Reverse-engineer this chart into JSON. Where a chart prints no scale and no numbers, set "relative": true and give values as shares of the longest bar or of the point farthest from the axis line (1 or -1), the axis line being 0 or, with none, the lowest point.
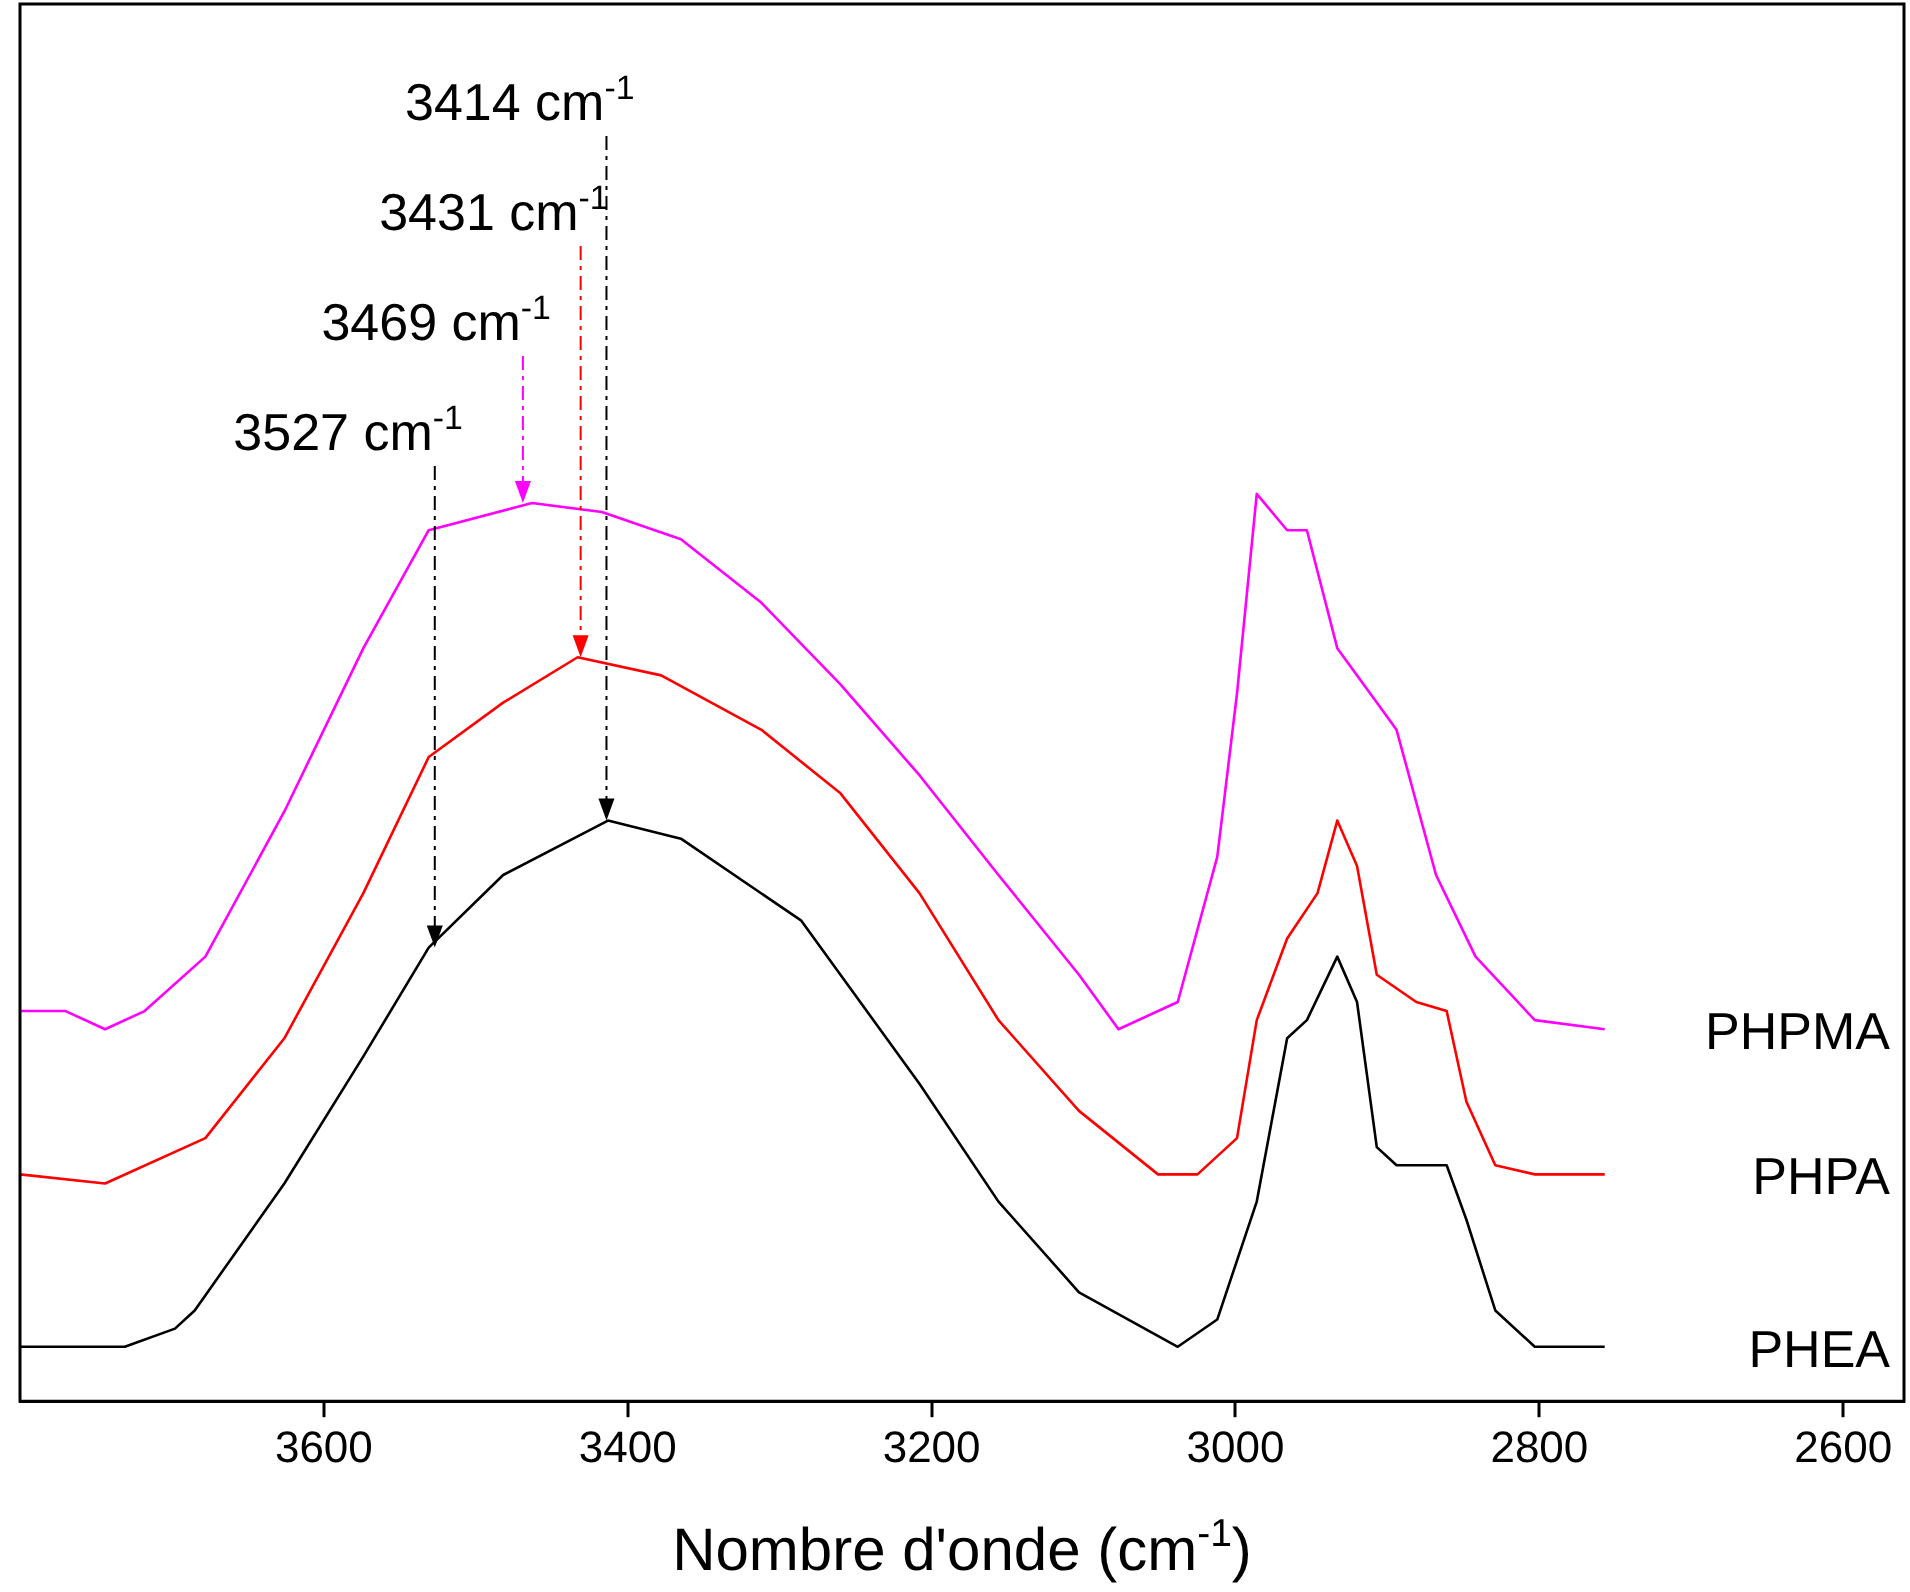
{
  "chart_data": {
    "type": "line",
    "relative": true,
    "xlabel": "Nombre d'onde (cm$^{-1}$)",
    "xlim": [
      3800,
      2560
    ],
    "xticks": [
      3600,
      3400,
      3200,
      3000,
      2800,
      2600
    ],
    "tick_labels": "x",
    "grid": false,
    "legend": false,
    "marker": "none",
    "line_style": "solid",
    "annotations": [
      {
        "text": "3414 cm$^{-1}$",
        "x": 3414,
        "y": 0.64
      },
      {
        "text": "3431 cm$^{-1}$",
        "x": 3431,
        "y": 0.82
      },
      {
        "text": "3469 cm$^{-1}$",
        "x": 3469,
        "y": 0.99
      },
      {
        "text": "3527 cm$^{-1}$",
        "x": 3527,
        "y": 0.5
      }
    ],
    "series": [
      {
        "name": "PHPMA",
        "color": "#ff00ff",
        "x": [
          3800,
          3770,
          3744,
          3718,
          3678,
          3626,
          3574,
          3531,
          3463,
          3417,
          3365,
          3312,
          3260,
          3208,
          3156,
          3103,
          3077,
          3038,
          3012,
          2999,
          2986,
          2966,
          2953,
          2933,
          2907,
          2894,
          2868,
          2842,
          2803,
          2757
        ],
        "values": [
          0.43,
          0.43,
          0.41,
          0.43,
          0.49,
          0.65,
          0.83,
          0.96,
          0.99,
          0.98,
          0.95,
          0.88,
          0.79,
          0.69,
          0.58,
          0.47,
          0.41,
          0.44,
          0.6,
          0.78,
          1.0,
          0.96,
          0.96,
          0.83,
          0.77,
          0.74,
          0.58,
          0.49,
          0.42,
          0.41
        ]
      },
      {
        "name": "PHPA",
        "color": "#ff0000",
        "x": [
          3800,
          3744,
          3678,
          3626,
          3574,
          3531,
          3482,
          3433,
          3378,
          3312,
          3260,
          3208,
          3156,
          3103,
          3051,
          3025,
          2999,
          2986,
          2966,
          2946,
          2933,
          2920,
          2907,
          2881,
          2861,
          2848,
          2829,
          2803,
          2757
        ],
        "values": [
          0.25,
          0.24,
          0.29,
          0.4,
          0.56,
          0.71,
          0.77,
          0.82,
          0.8,
          0.74,
          0.67,
          0.56,
          0.42,
          0.32,
          0.25,
          0.25,
          0.29,
          0.42,
          0.51,
          0.56,
          0.64,
          0.59,
          0.47,
          0.44,
          0.43,
          0.33,
          0.26,
          0.25,
          0.25
        ]
      },
      {
        "name": "PHEA",
        "color": "#000000",
        "x": [
          3800,
          3757,
          3731,
          3698,
          3685,
          3626,
          3574,
          3531,
          3482,
          3413,
          3365,
          3286,
          3208,
          3156,
          3103,
          3038,
          3012,
          2986,
          2966,
          2953,
          2933,
          2920,
          2907,
          2894,
          2877,
          2861,
          2848,
          2829,
          2803,
          2757
        ],
        "values": [
          0.06,
          0.06,
          0.06,
          0.08,
          0.1,
          0.24,
          0.38,
          0.5,
          0.58,
          0.64,
          0.62,
          0.53,
          0.35,
          0.22,
          0.12,
          0.06,
          0.09,
          0.22,
          0.4,
          0.42,
          0.49,
          0.44,
          0.28,
          0.26,
          0.26,
          0.26,
          0.2,
          0.1,
          0.06,
          0.06
        ]
      }
    ]
  }
}
